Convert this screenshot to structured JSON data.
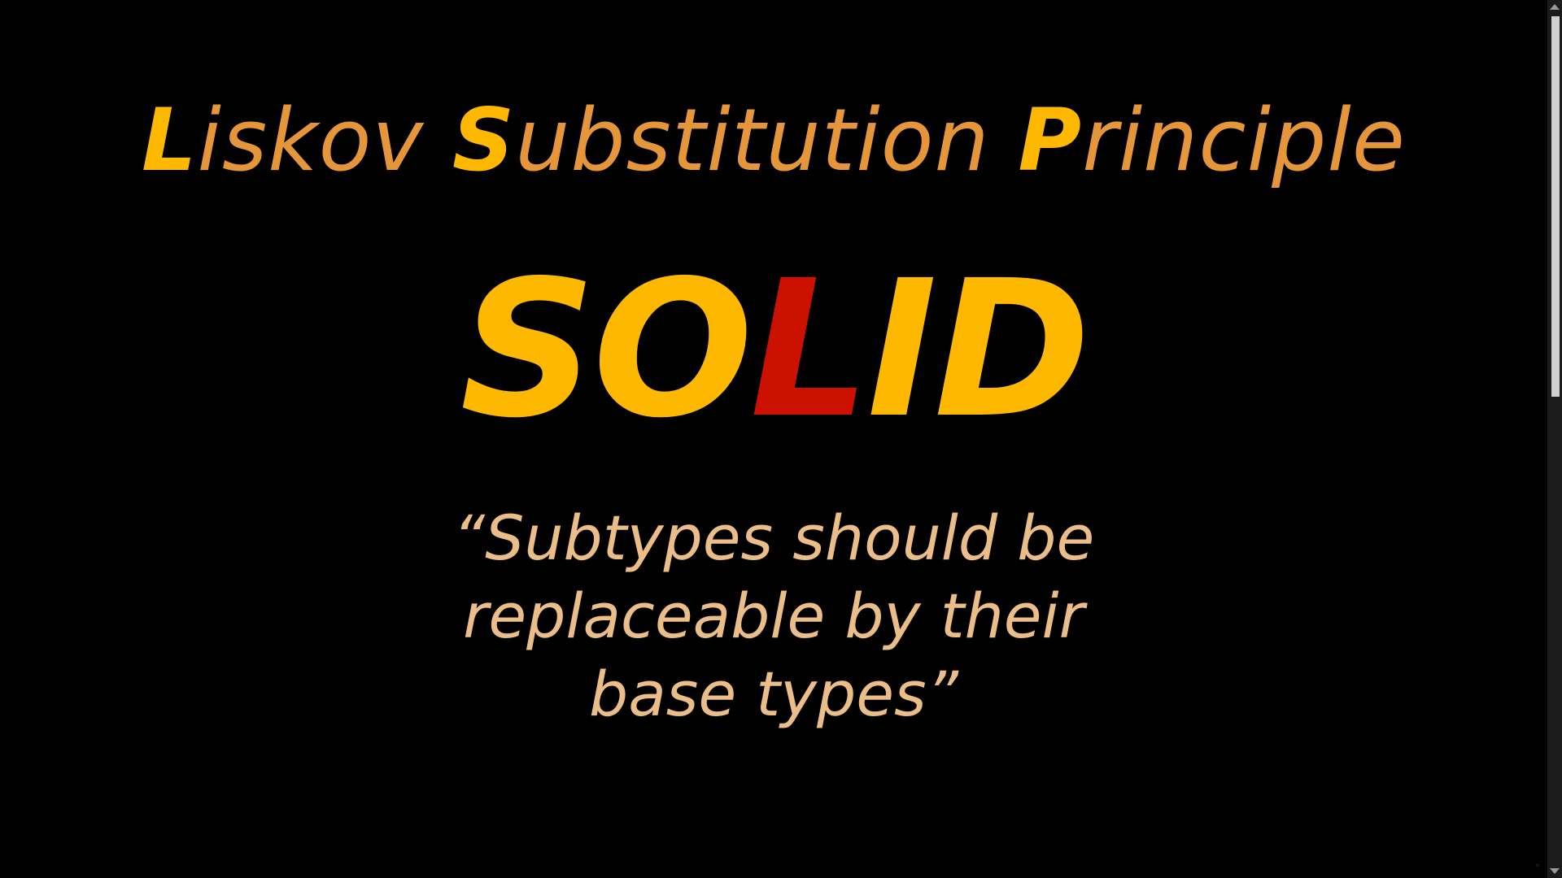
{
  "slide": {
    "title": {
      "words": [
        {
          "initial": "L",
          "rest": "iskov"
        },
        {
          "initial": "S",
          "rest": "ubstitution"
        },
        {
          "initial": "P",
          "rest": "rinciple"
        }
      ]
    },
    "acronym": {
      "letters": [
        "S",
        "O",
        "L",
        "I",
        "D"
      ],
      "highlighted_letter": "L"
    },
    "quote": {
      "lines": [
        "“Subtypes should be",
        "replaceable by their",
        "base types”"
      ]
    }
  },
  "colors": {
    "background": "#000000",
    "title_initial": "#FFB800",
    "title_rest": "#E6963A",
    "acronym": "#FFB800",
    "acronym_highlight": "#CC1100",
    "quote": "#EBBD88"
  },
  "scrollbar": {
    "icons": [
      "scroll-up-arrow-icon",
      "scroll-down-arrow-icon"
    ]
  }
}
